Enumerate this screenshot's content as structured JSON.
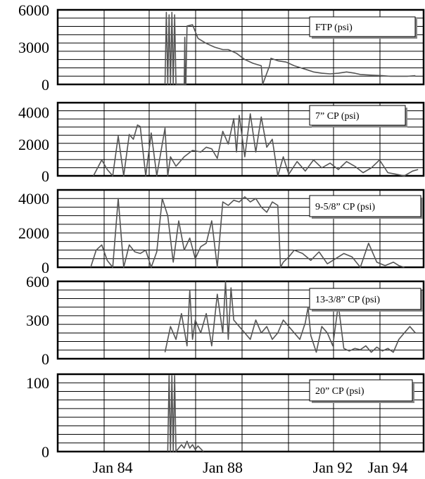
{
  "chart_data": [
    {
      "type": "line",
      "legend": "FTP (psi)",
      "yticks": [
        "6000",
        "3000",
        "0"
      ],
      "ytick_values": [
        6000,
        3000,
        0
      ],
      "ylim": [
        0,
        6000
      ],
      "xlim": [
        1982.0,
        1995.3
      ],
      "series": [
        {
          "x": [
            1985.9,
            1985.95,
            1986.0,
            1986.05,
            1986.1,
            1986.15,
            1986.2,
            1986.25,
            1986.3,
            1986.6,
            1986.62,
            1986.64,
            1986.66,
            1986.7,
            1986.9,
            1987.1,
            1987.4,
            1987.7,
            1988.0,
            1988.2,
            1988.5,
            1988.8,
            1989.1,
            1989.4,
            1989.45,
            1989.7,
            1989.75,
            1990.0,
            1990.3,
            1990.6,
            1991.1,
            1991.3,
            1991.6,
            1991.9,
            1992.2,
            1992.5,
            1992.8,
            1993.0,
            1993.4,
            1993.8,
            1994.1,
            1994.4,
            1994.7,
            1995.0
          ],
          "y": [
            0,
            5800,
            0,
            5600,
            0,
            5800,
            0,
            5600,
            0,
            0,
            3800,
            0,
            0,
            4700,
            4800,
            3700,
            3300,
            3000,
            2800,
            2800,
            2500,
            2000,
            1700,
            1500,
            0,
            1500,
            2100,
            1900,
            1800,
            1500,
            1150,
            1000,
            900,
            850,
            900,
            1000,
            900,
            800,
            750,
            700,
            650,
            650,
            650,
            700
          ]
        }
      ]
    },
    {
      "type": "line",
      "legend": "7” CP (psi)",
      "yticks": [
        "4000",
        "2000",
        "0"
      ],
      "ytick_values": [
        4000,
        2000,
        0
      ],
      "ylim": [
        0,
        4600
      ],
      "xlim": [
        1982.0,
        1995.3
      ],
      "series": [
        {
          "x": [
            1983.3,
            1983.6,
            1983.8,
            1984.0,
            1984.2,
            1984.4,
            1984.6,
            1984.75,
            1984.9,
            1985.0,
            1985.2,
            1985.4,
            1985.6,
            1985.9,
            1986.0,
            1986.1,
            1986.3,
            1986.6,
            1986.9,
            1987.2,
            1987.4,
            1987.6,
            1987.8,
            1988.0,
            1988.2,
            1988.4,
            1988.5,
            1988.6,
            1988.8,
            1989.0,
            1989.2,
            1989.4,
            1989.6,
            1989.8,
            1990.0,
            1990.2,
            1990.4,
            1990.7,
            1991.0,
            1991.3,
            1991.6,
            1991.9,
            1992.2,
            1992.5,
            1992.8,
            1993.1,
            1993.4,
            1993.7,
            1994.0,
            1994.3,
            1994.6,
            1994.9,
            1995.1
          ],
          "y": [
            0,
            1000,
            400,
            0,
            2500,
            0,
            2600,
            2300,
            3200,
            3100,
            0,
            2700,
            0,
            3000,
            0,
            1200,
            600,
            1200,
            1600,
            1500,
            1800,
            1700,
            1100,
            2800,
            2000,
            3600,
            1500,
            3800,
            1200,
            3900,
            1500,
            3700,
            1800,
            2300,
            0,
            1200,
            100,
            900,
            300,
            1000,
            500,
            800,
            400,
            900,
            600,
            200,
            500,
            1000,
            200,
            100,
            0,
            300,
            400
          ]
        }
      ]
    },
    {
      "type": "line",
      "legend": "9-5/8” CP (psi)",
      "yticks": [
        "4000",
        "2000",
        "0"
      ],
      "ytick_values": [
        4000,
        2000,
        0
      ],
      "ylim": [
        0,
        4500
      ],
      "xlim": [
        1982.0,
        1995.3
      ],
      "series": [
        {
          "x": [
            1983.2,
            1983.4,
            1983.6,
            1983.8,
            1984.0,
            1984.2,
            1984.4,
            1984.6,
            1984.8,
            1985.0,
            1985.2,
            1985.4,
            1985.6,
            1985.8,
            1986.0,
            1986.2,
            1986.4,
            1986.6,
            1986.8,
            1987.0,
            1987.2,
            1987.4,
            1987.6,
            1987.8,
            1988.0,
            1988.2,
            1988.4,
            1988.6,
            1988.8,
            1989.0,
            1989.2,
            1989.4,
            1989.6,
            1989.8,
            1990.0,
            1990.1,
            1990.2,
            1990.4,
            1990.6,
            1990.9,
            1991.2,
            1991.5,
            1991.8,
            1992.1,
            1992.4,
            1992.7,
            1993.0,
            1993.3,
            1993.6,
            1993.9,
            1994.2,
            1994.4,
            1994.6
          ],
          "y": [
            0,
            1000,
            1300,
            400,
            0,
            4000,
            0,
            1300,
            900,
            800,
            1000,
            0,
            900,
            4000,
            3000,
            300,
            2700,
            1000,
            1700,
            500,
            1200,
            1400,
            2700,
            0,
            3800,
            3600,
            3900,
            3800,
            4100,
            3800,
            4000,
            3500,
            3200,
            3800,
            3600,
            0,
            300,
            600,
            1000,
            800,
            400,
            900,
            200,
            500,
            800,
            600,
            0,
            1400,
            300,
            100,
            300,
            100,
            0
          ]
        }
      ]
    },
    {
      "type": "line",
      "legend": "13-3/8” CP (psi)",
      "yticks": [
        "600",
        "300",
        "0"
      ],
      "ytick_values": [
        600,
        300,
        0
      ],
      "ylim": [
        0,
        600
      ],
      "xlim": [
        1982.0,
        1995.3
      ],
      "series": [
        {
          "x": [
            1985.9,
            1986.1,
            1986.3,
            1986.5,
            1986.7,
            1986.8,
            1986.9,
            1987.0,
            1987.2,
            1987.4,
            1987.6,
            1987.8,
            1988.0,
            1988.1,
            1988.2,
            1988.3,
            1988.4,
            1988.6,
            1988.8,
            1989.0,
            1989.2,
            1989.4,
            1989.6,
            1989.8,
            1990.0,
            1990.2,
            1990.4,
            1990.6,
            1990.8,
            1991.0,
            1991.1,
            1991.2,
            1991.4,
            1991.6,
            1991.8,
            1992.0,
            1992.2,
            1992.4,
            1992.6,
            1992.8,
            1993.0,
            1993.2,
            1993.4,
            1993.6,
            1993.8,
            1994.0,
            1994.2,
            1994.4,
            1994.6,
            1994.8,
            1995.0
          ],
          "y": [
            50,
            250,
            150,
            350,
            100,
            530,
            150,
            300,
            200,
            350,
            100,
            500,
            200,
            600,
            150,
            550,
            300,
            250,
            200,
            150,
            300,
            200,
            250,
            150,
            200,
            300,
            250,
            200,
            150,
            280,
            400,
            180,
            50,
            250,
            200,
            100,
            420,
            80,
            60,
            80,
            70,
            100,
            50,
            90,
            60,
            80,
            50,
            150,
            200,
            250,
            200
          ]
        }
      ]
    },
    {
      "type": "line",
      "legend": "20” CP (psi)",
      "yticks": [
        "100",
        "0"
      ],
      "ytick_values": [
        100,
        0
      ],
      "ylim": [
        0,
        112
      ],
      "xlim": [
        1982.0,
        1995.3
      ],
      "series": [
        {
          "x": [
            1986.0,
            1986.05,
            1986.1,
            1986.15,
            1986.2,
            1986.25,
            1986.3,
            1986.5,
            1986.6,
            1986.7,
            1986.8,
            1986.9,
            1987.0,
            1987.1,
            1987.3
          ],
          "y": [
            0,
            110,
            0,
            110,
            0,
            110,
            0,
            10,
            5,
            15,
            5,
            10,
            3,
            8,
            0
          ]
        }
      ]
    }
  ],
  "x_axis": {
    "ticks": [
      "Jan 84",
      "Jan 88",
      "Jan 92",
      "Jan 94"
    ],
    "tick_values": [
      1984.0,
      1988.0,
      1992.0,
      1994.0
    ]
  }
}
